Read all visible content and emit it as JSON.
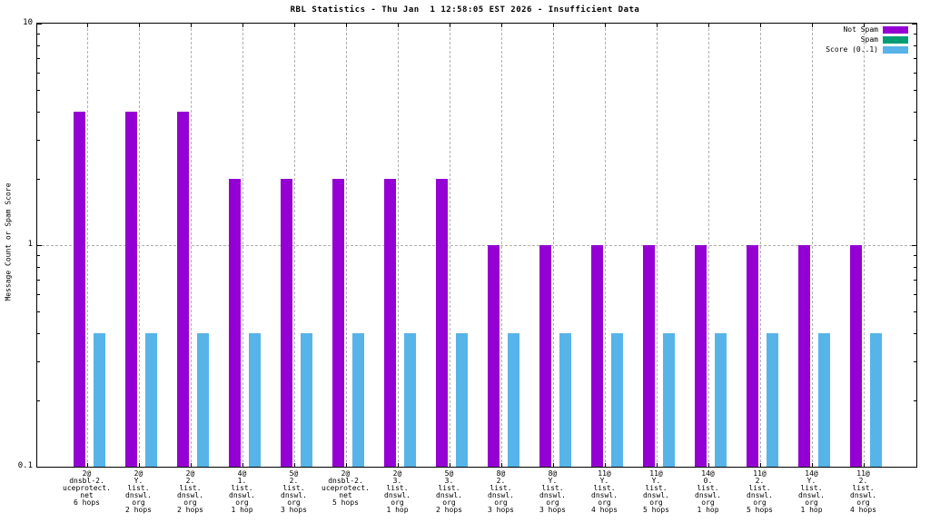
{
  "chart_data": {
    "type": "bar",
    "title": "RBL Statistics - Thu Jan  1 12:58:05 EST 2026 - Insufficient Data",
    "ylabel": "Message Count or Spam Score",
    "xlabel": "",
    "yscale": "log",
    "ylim": [
      0.1,
      10
    ],
    "ytick_labels": [
      "0.1",
      "1",
      "10"
    ],
    "grid": "vertical dashed at each category, horizontal dashed at y=1",
    "legend_position": "top-right",
    "colors": {
      "not_spam": "#9400d3",
      "spam": "#009e73",
      "score": "#56b4e9",
      "grid": "#b0b0b0",
      "background": "#ffffff",
      "axis": "#000000"
    },
    "legend": [
      {
        "name": "Not Spam",
        "color": "#9400d3"
      },
      {
        "name": "Spam",
        "color": "#009e73"
      },
      {
        "name": "Score (0..1)",
        "color": "#56b4e9"
      }
    ],
    "categories": [
      [
        "2@",
        "dnsbl-2.",
        "uceprotect.",
        "net",
        "6 hops"
      ],
      [
        "2@",
        "Y.",
        "list.",
        "dnswl.",
        "org",
        "2 hops"
      ],
      [
        "2@",
        "2.",
        "list.",
        "dnswl.",
        "org",
        "2 hops"
      ],
      [
        "4@",
        "1.",
        "list.",
        "dnswl.",
        "org",
        "1 hop"
      ],
      [
        "5@",
        "2.",
        "list.",
        "dnswl.",
        "org",
        "3 hops"
      ],
      [
        "2@",
        "dnsbl-2.",
        "uceprotect.",
        "net",
        "5 hops"
      ],
      [
        "2@",
        "3.",
        "list.",
        "dnswl.",
        "org",
        "1 hop"
      ],
      [
        "5@",
        "3.",
        "list.",
        "dnswl.",
        "org",
        "2 hops"
      ],
      [
        "8@",
        "2.",
        "list.",
        "dnswl.",
        "org",
        "3 hops"
      ],
      [
        "8@",
        "Y.",
        "list.",
        "dnswl.",
        "org",
        "3 hops"
      ],
      [
        "11@",
        "Y.",
        "list.",
        "dnswl.",
        "org",
        "4 hops"
      ],
      [
        "11@",
        "Y.",
        "list.",
        "dnswl.",
        "org",
        "5 hops"
      ],
      [
        "14@",
        "0.",
        "list.",
        "dnswl.",
        "org",
        "1 hop"
      ],
      [
        "11@",
        "2.",
        "list.",
        "dnswl.",
        "org",
        "5 hops"
      ],
      [
        "14@",
        "Y.",
        "list.",
        "dnswl.",
        "org",
        "1 hop"
      ],
      [
        "11@",
        "2.",
        "list.",
        "dnswl.",
        "org",
        "4 hops"
      ]
    ],
    "series": [
      {
        "name": "Not Spam",
        "color": "#9400d3",
        "values": [
          4,
          4,
          4,
          2,
          2,
          2,
          2,
          2,
          1,
          1,
          1,
          1,
          1,
          1,
          1,
          1
        ]
      },
      {
        "name": "Spam",
        "color": "#009e73",
        "values": [
          0,
          0,
          0,
          0,
          0,
          0,
          0,
          0,
          0,
          0,
          0,
          0,
          0,
          0,
          0,
          0
        ]
      },
      {
        "name": "Score (0..1)",
        "color": "#56b4e9",
        "values": [
          0.4,
          0.4,
          0.4,
          0.4,
          0.4,
          0.4,
          0.4,
          0.4,
          0.4,
          0.4,
          0.4,
          0.4,
          0.4,
          0.4,
          0.4,
          0.4
        ]
      }
    ]
  }
}
